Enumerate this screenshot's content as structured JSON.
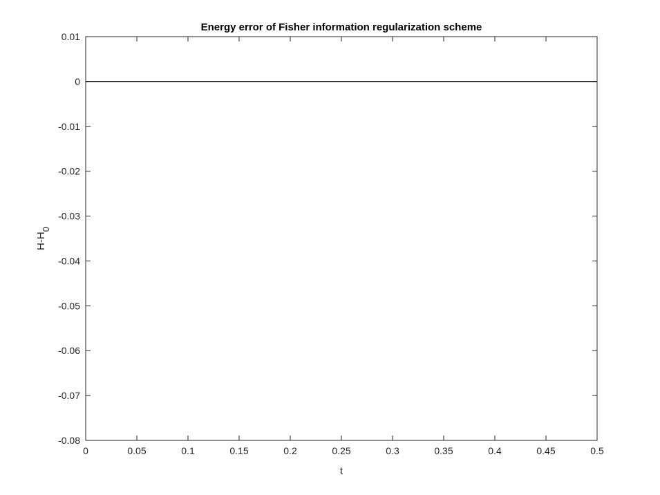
{
  "chart_data": {
    "type": "line",
    "title": "Energy error of Fisher information regularization scheme",
    "xlabel": "t",
    "ylabel": "H-H",
    "ylabel_subscript": "0",
    "x": [
      0,
      0.1,
      0.2,
      0.3,
      0.4,
      0.5
    ],
    "values": [
      0,
      0,
      0,
      0,
      0,
      0
    ],
    "color": "#000000",
    "xlim": [
      0,
      0.5
    ],
    "xticks": [
      0,
      0.05,
      0.1,
      0.15,
      0.2,
      0.25,
      0.3,
      0.35,
      0.4,
      0.45,
      0.5
    ],
    "ylim": [
      -0.08,
      0.01
    ],
    "yticks": [
      -0.08,
      -0.07,
      -0.06,
      -0.05,
      -0.04,
      -0.03,
      -0.02,
      -0.01,
      0,
      0.01
    ],
    "grid": false
  }
}
